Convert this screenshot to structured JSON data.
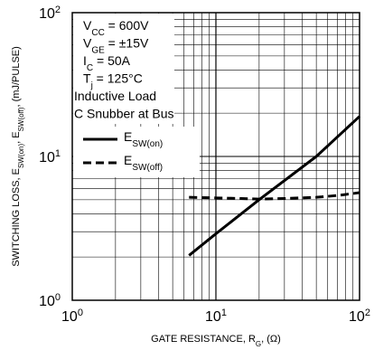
{
  "chart_data": {
    "type": "line",
    "x_scale": "log",
    "y_scale": "log",
    "xlim": [
      1,
      100
    ],
    "ylim": [
      1,
      100
    ],
    "grid": true,
    "xlabel": {
      "main": "GATE RESISTANCE, R",
      "sub": "G",
      "suffix": ", (Ω)"
    },
    "ylabel": {
      "p1": "SWITCHING LOSS, E",
      "s1": "SW(on)",
      "p2": ", E",
      "s2": "SW(off)",
      "p3": ", (mJ/PULSE)"
    },
    "x_ticks": [
      {
        "base": "10",
        "exp": "0",
        "value": 1
      },
      {
        "base": "10",
        "exp": "1",
        "value": 10
      },
      {
        "base": "10",
        "exp": "2",
        "value": 100
      }
    ],
    "y_ticks": [
      {
        "base": "10",
        "exp": "0",
        "value": 1
      },
      {
        "base": "10",
        "exp": "1",
        "value": 10
      },
      {
        "base": "10",
        "exp": "2",
        "value": 100
      }
    ],
    "conditions": [
      {
        "main": "V",
        "sub": "CC",
        "rest": " = 600V"
      },
      {
        "main": "V",
        "sub": "GE",
        "rest": " = ±15V"
      },
      {
        "main": "I",
        "sub": "C",
        "rest": " = 50A"
      },
      {
        "main": "T",
        "sub": "j",
        "rest": " = 125°C"
      },
      {
        "main": "Inductive Load",
        "sub": "",
        "rest": ""
      },
      {
        "main": "C Snubber at Bus",
        "sub": "",
        "rest": ""
      }
    ],
    "series": [
      {
        "name_main": "E",
        "name_sub": "SW(on)",
        "style": "solid",
        "x": [
          6.5,
          10,
          20,
          50,
          100
        ],
        "y": [
          2.05,
          2.9,
          5.0,
          10.0,
          19.0
        ]
      },
      {
        "name_main": "E",
        "name_sub": "SW(off)",
        "style": "dashed",
        "x": [
          6.5,
          10,
          15,
          20,
          30,
          50,
          70,
          100
        ],
        "y": [
          5.2,
          5.15,
          5.1,
          5.05,
          5.1,
          5.2,
          5.35,
          5.6
        ]
      }
    ],
    "colors": {
      "line": "#000000",
      "grid": "#000000",
      "background": "#ffffff"
    }
  }
}
